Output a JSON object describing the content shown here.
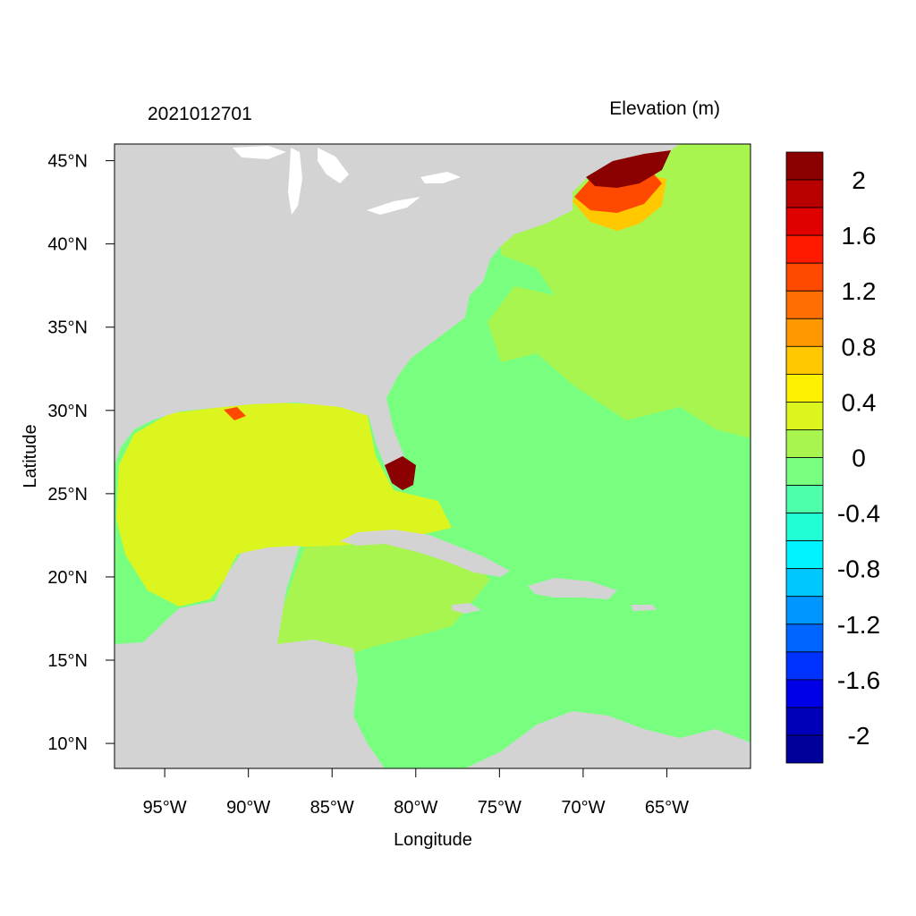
{
  "title_left": "2021012701",
  "title_right": "Elevation (m)",
  "x_axis_label": "Longitude",
  "y_axis_label": "Latitude",
  "x_ticks": [
    "95°W",
    "90°W",
    "85°W",
    "80°W",
    "75°W",
    "70°W",
    "65°W"
  ],
  "y_ticks": [
    "45°N",
    "40°N",
    "35°N",
    "30°N",
    "25°N",
    "20°N",
    "15°N",
    "10°N"
  ],
  "map_extent": {
    "lon_min": -98,
    "lon_max": -60,
    "lat_min": 8.5,
    "lat_max": 46
  },
  "colorbar": {
    "labels": [
      "2",
      "1.6",
      "1.2",
      "0.8",
      "0.4",
      "0",
      "-0.4",
      "-0.8",
      "-1.2",
      "-1.6",
      "-2"
    ],
    "colors": [
      "#8b0000",
      "#b80000",
      "#e00000",
      "#ff1a00",
      "#ff4800",
      "#ff6e00",
      "#ff9800",
      "#ffc800",
      "#fff200",
      "#dcf51e",
      "#a8f550",
      "#78ff80",
      "#4cffa8",
      "#20ffd4",
      "#00f4ff",
      "#00c8ff",
      "#0096ff",
      "#0064ff",
      "#0032ff",
      "#0000e6",
      "#0000b8",
      "#00009a"
    ]
  },
  "colors": {
    "land": "#d3d3d3",
    "lakes": "#ffffff",
    "gulf_surge": "#dcf51e",
    "caribbean_west": "#a8f550",
    "atlantic_main": "#78ff80",
    "atlantic_north": "#a8f550",
    "gulf_of_maine_peak": "#8b0000"
  }
}
